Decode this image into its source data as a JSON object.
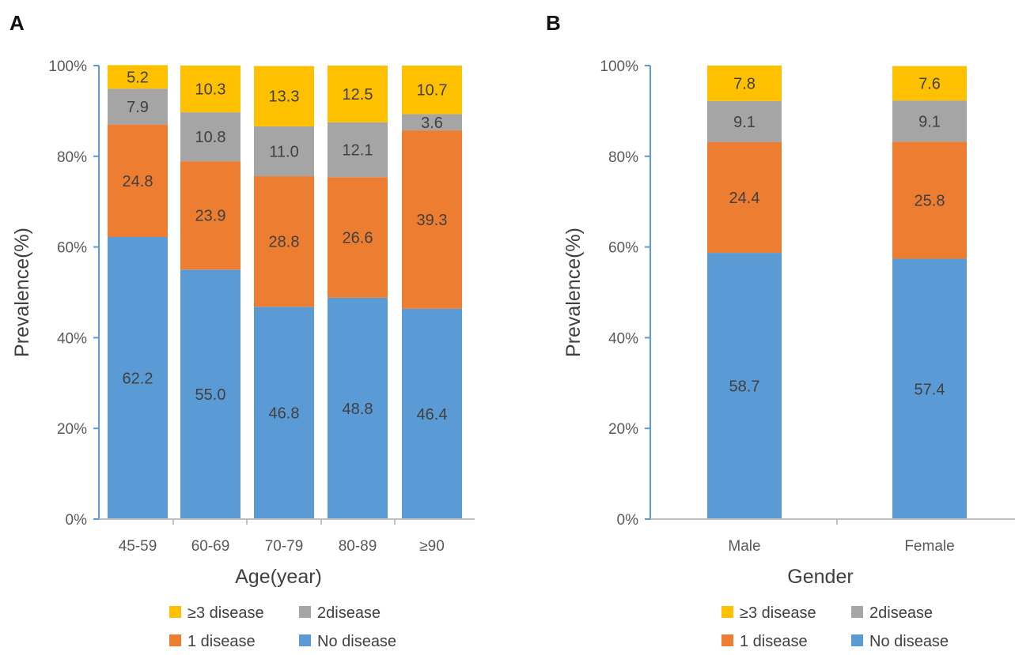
{
  "colors": {
    "no_disease": "#5b9bd5",
    "one_disease": "#ed7d31",
    "two_disease": "#a5a5a5",
    "three_plus": "#ffc000",
    "axis": "#5b9bd5",
    "category_axis": "#bfbfbf"
  },
  "chart_data": [
    {
      "type": "bar",
      "stacked": true,
      "percent": true,
      "panel": "A",
      "xlabel": "Age(year)",
      "ylabel": "Prevalence(%)",
      "yticks": [
        "0%",
        "20%",
        "40%",
        "60%",
        "80%",
        "100%"
      ],
      "ylim": [
        0,
        100
      ],
      "categories": [
        "45-59",
        "60-69",
        "70-79",
        "80-89",
        "≥90"
      ],
      "series": [
        {
          "name": "No disease",
          "color_key": "no_disease",
          "values": [
            62.2,
            55.0,
            46.8,
            48.8,
            46.4
          ],
          "labels": [
            "62.2",
            "55.0",
            "46.8",
            "48.8",
            "46.4"
          ]
        },
        {
          "name": "1 disease",
          "color_key": "one_disease",
          "values": [
            24.8,
            23.9,
            28.8,
            26.6,
            39.3
          ],
          "labels": [
            "24.8",
            "23.9",
            "28.8",
            "26.6",
            "39.3"
          ]
        },
        {
          "name": "2disease",
          "color_key": "two_disease",
          "values": [
            7.9,
            10.8,
            11.0,
            12.1,
            3.6
          ],
          "labels": [
            "7.9",
            "10.8",
            "11.0",
            "12.1",
            "3.6"
          ]
        },
        {
          "name": "≥3 disease",
          "color_key": "three_plus",
          "values": [
            5.2,
            10.3,
            13.3,
            12.5,
            10.7
          ],
          "labels": [
            "5.2",
            "10.3",
            "13.3",
            "12.5",
            "10.7"
          ]
        }
      ],
      "legend_position": "bottom",
      "legend_order": [
        "≥3 disease",
        "2disease",
        "1 disease",
        "No disease"
      ],
      "grid": false
    },
    {
      "type": "bar",
      "stacked": true,
      "percent": true,
      "panel": "B",
      "xlabel": "Gender",
      "ylabel": "Prevalence(%)",
      "yticks": [
        "0%",
        "20%",
        "40%",
        "60%",
        "80%",
        "100%"
      ],
      "ylim": [
        0,
        100
      ],
      "categories": [
        "Male",
        "Female"
      ],
      "series": [
        {
          "name": "No disease",
          "color_key": "no_disease",
          "values": [
            58.7,
            57.4
          ],
          "labels": [
            "58.7",
            "57.4"
          ]
        },
        {
          "name": "1 disease",
          "color_key": "one_disease",
          "values": [
            24.4,
            25.8
          ],
          "labels": [
            "24.4",
            "25.8"
          ]
        },
        {
          "name": "2disease",
          "color_key": "two_disease",
          "values": [
            9.1,
            9.1
          ],
          "labels": [
            "9.1",
            "9.1"
          ]
        },
        {
          "name": "≥3 disease",
          "color_key": "three_plus",
          "values": [
            7.8,
            7.6
          ],
          "labels": [
            "7.8",
            "7.6"
          ]
        }
      ],
      "legend_position": "bottom",
      "legend_order": [
        "≥3 disease",
        "2disease",
        "1 disease",
        "No disease"
      ],
      "grid": false
    }
  ]
}
